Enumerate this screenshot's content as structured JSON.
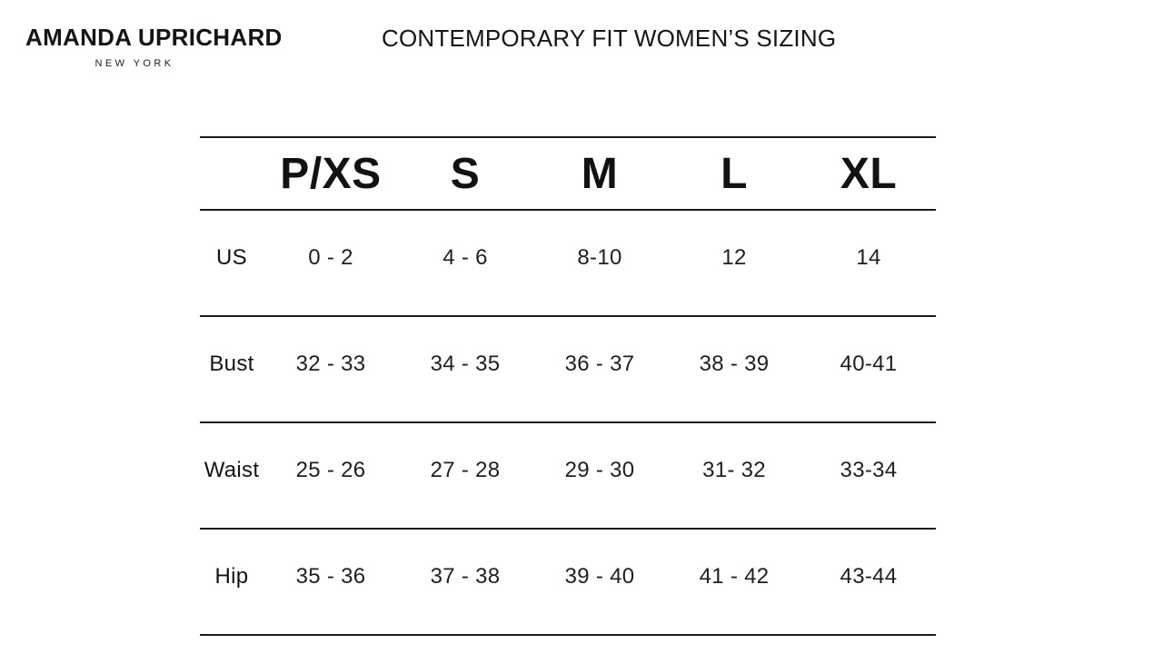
{
  "brand": {
    "name": "AMANDA UPRICHARD",
    "subtitle": "NEW YORK"
  },
  "title": "CONTEMPORARY FIT WOMEN’S SIZING",
  "colors": {
    "background": "#ffffff",
    "text": "#1b1b1b",
    "rule_lines": "#1c1c1c"
  },
  "size_chart": {
    "type": "table",
    "columns": [
      "",
      "P/XS",
      "S",
      "M",
      "L",
      "XL"
    ],
    "rows": [
      {
        "label": "US",
        "values": [
          "0 - 2",
          "4 - 6",
          "8-10",
          "12",
          "14"
        ]
      },
      {
        "label": "Bust",
        "values": [
          "32 - 33",
          "34 - 35",
          "36 - 37",
          "38 - 39",
          "40-41"
        ]
      },
      {
        "label": "Waist",
        "values": [
          "25 - 26",
          "27 - 28",
          "29 - 30",
          "31- 32",
          "33-34"
        ]
      },
      {
        "label": "Hip",
        "values": [
          "35 - 36",
          "37 - 38",
          "39 - 40",
          "41 - 42",
          "43-44"
        ]
      }
    ]
  }
}
